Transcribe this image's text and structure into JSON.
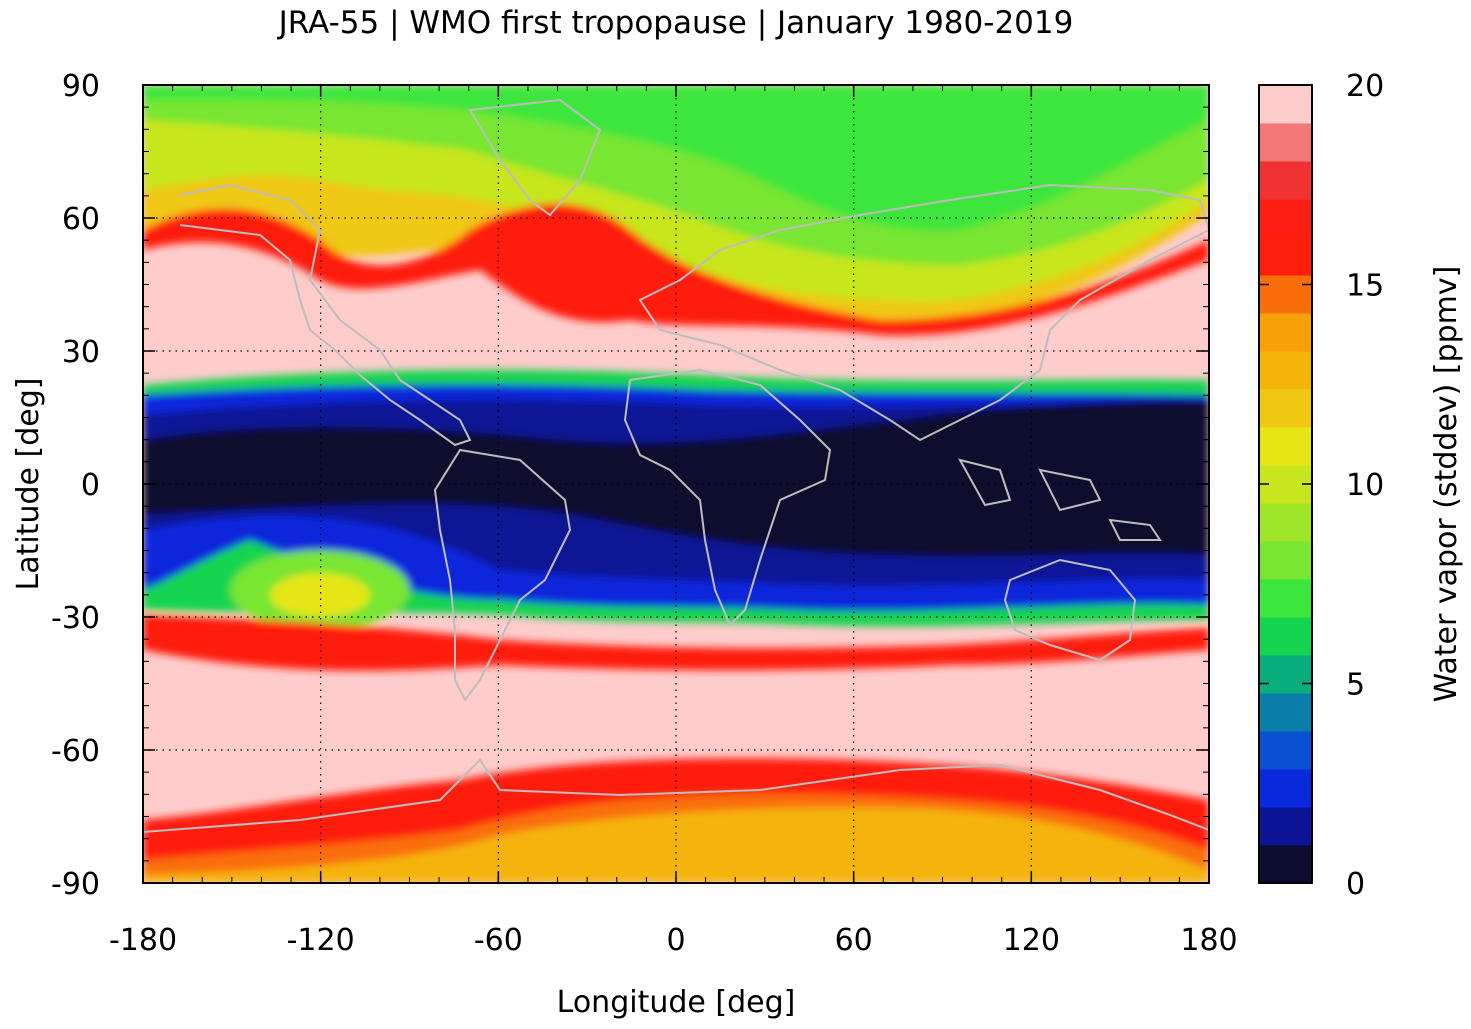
{
  "title": "JRA-55 | WMO first tropopause | January 1980-2019",
  "x_axis": {
    "label": "Longitude [deg]",
    "ticks": [
      -180,
      -120,
      -60,
      0,
      60,
      120,
      180
    ],
    "range": [
      -180,
      180
    ]
  },
  "y_axis": {
    "label": "Latitude [deg]",
    "ticks": [
      90,
      60,
      30,
      0,
      -30,
      -60,
      -90
    ],
    "range": [
      -90,
      90
    ]
  },
  "colorbar": {
    "label": "Water vapor (stddev) [ppmv]",
    "ticks": [
      0,
      5,
      10,
      15,
      20
    ],
    "range": [
      0,
      20
    ],
    "colors": [
      "#0c0c2e",
      "#0a1494",
      "#0a28dc",
      "#0a50d2",
      "#0a7ea8",
      "#0aae7c",
      "#14d450",
      "#3ce63c",
      "#78e632",
      "#a0e628",
      "#c8e61e",
      "#e6e614",
      "#f0c814",
      "#f5b40a",
      "#f8a00a",
      "#fa6e0a",
      "#ff1e0a",
      "#ff1e14",
      "#f03232",
      "#f47878",
      "#ffcccc"
    ]
  },
  "grid": true,
  "grid_style": "dotted",
  "coastlines": "light gray"
}
